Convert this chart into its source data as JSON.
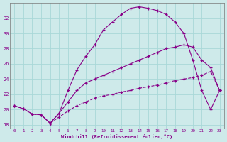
{
  "xlabel": "Windchill (Refroidissement éolien,°C)",
  "bg_color": "#ceeaea",
  "grid_color": "#a8d8d8",
  "line_color": "#880088",
  "xlim": [
    -0.5,
    23.5
  ],
  "ylim": [
    17.5,
    34.0
  ],
  "xticks": [
    0,
    1,
    2,
    3,
    4,
    5,
    6,
    7,
    8,
    9,
    10,
    11,
    12,
    13,
    14,
    15,
    16,
    17,
    18,
    19,
    20,
    21,
    22,
    23
  ],
  "yticks": [
    18,
    20,
    22,
    24,
    26,
    28,
    30,
    32
  ],
  "curve1_x": [
    0,
    1,
    2,
    3,
    4,
    5,
    6,
    7,
    8,
    9,
    10,
    11,
    12,
    13,
    14,
    15,
    16,
    17,
    18,
    19,
    20,
    21,
    22,
    23
  ],
  "curve1_y": [
    20.5,
    20.1,
    19.4,
    19.3,
    18.2,
    19.5,
    22.5,
    25.2,
    27.0,
    28.5,
    30.5,
    31.5,
    32.5,
    33.3,
    33.5,
    33.3,
    33.0,
    32.5,
    31.5,
    30.0,
    26.5,
    22.5,
    20.0,
    22.5
  ],
  "curve2_x": [
    0,
    1,
    2,
    3,
    4,
    5,
    6,
    7,
    8,
    9,
    10,
    11,
    12,
    13,
    14,
    15,
    16,
    17,
    18,
    19,
    20,
    21,
    22,
    23
  ],
  "curve2_y": [
    20.5,
    20.1,
    19.4,
    19.3,
    18.2,
    19.0,
    19.8,
    20.5,
    21.0,
    21.5,
    21.8,
    22.0,
    22.3,
    22.5,
    22.8,
    23.0,
    23.2,
    23.5,
    23.8,
    24.0,
    24.2,
    24.5,
    25.0,
    22.5
  ],
  "curve3_x": [
    3,
    4,
    5,
    6,
    7,
    8,
    9,
    10,
    11,
    12,
    13,
    14,
    15,
    16,
    17,
    18,
    19,
    20,
    21,
    22,
    23
  ],
  "curve3_y": [
    19.3,
    18.2,
    19.5,
    21.0,
    22.5,
    23.5,
    24.0,
    24.5,
    25.0,
    25.5,
    26.0,
    26.5,
    27.0,
    27.5,
    28.0,
    28.2,
    28.5,
    28.2,
    26.5,
    25.5,
    22.5
  ]
}
